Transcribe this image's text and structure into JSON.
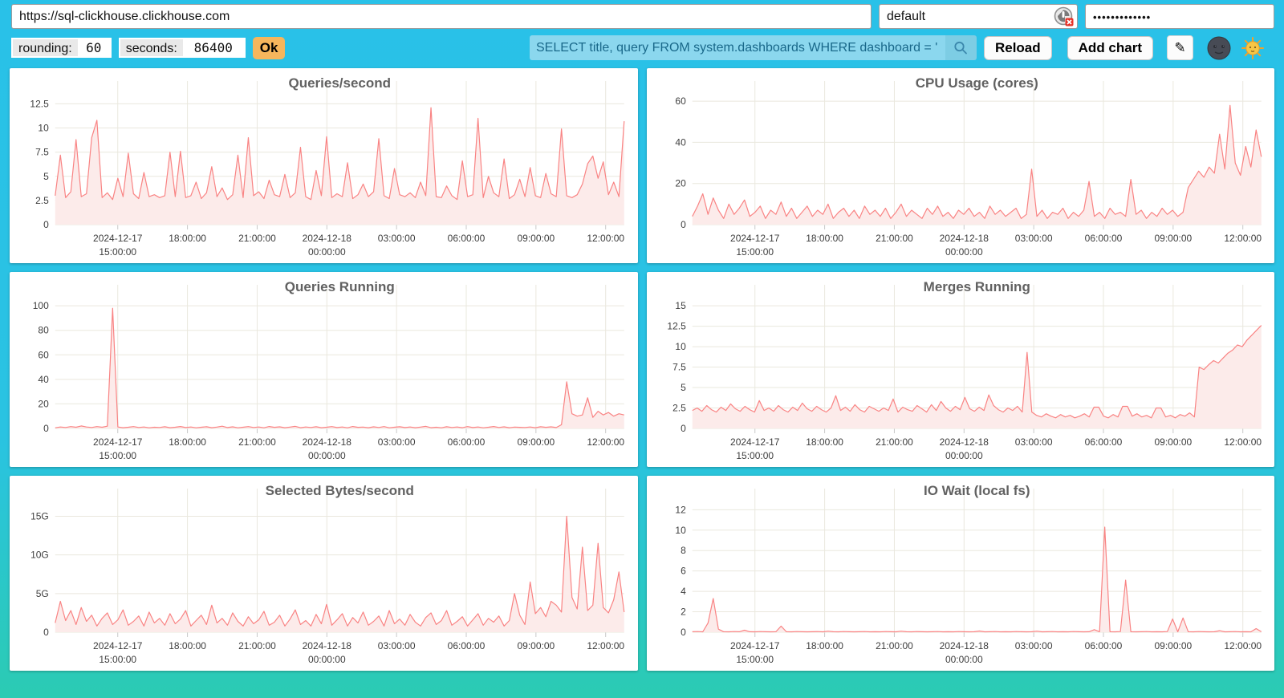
{
  "toolbar": {
    "url_value": "https://sql-clickhouse.clickhouse.com",
    "user_value": "default",
    "password_masked": "•••••••••••••",
    "rounding_label": "rounding:",
    "rounding_value": "60",
    "seconds_label": "seconds:",
    "seconds_value": "86400",
    "ok_label": "Ok",
    "query_value": "SELECT title, query FROM system.dashboards WHERE dashboard = '",
    "search_icon": "magnifier-icon",
    "reload_label": "Reload",
    "add_chart_label": "Add chart",
    "edit_icon": "pencil-icon",
    "theme_dark_icon": "new-moon-face-icon",
    "theme_light_icon": "sun-with-face-icon",
    "user_icon": "broken-image-icon"
  },
  "colors": {
    "background_top": "#29C1E8",
    "background_bottom": "#2BCBB3",
    "panel": "#FFFFFF",
    "grid": "#EAE8DE",
    "axis_stub": "#C9C9C9",
    "series_line": "#F98383",
    "series_fill": "#FCEBEA",
    "title_text": "#616161",
    "tick_text": "#3D3D3D",
    "ok_button": "#F6B65C",
    "query_bg": "#8BD7EE",
    "query_text": "#19688A"
  },
  "x_axis_shared": {
    "xticks": [
      0.11,
      0.2325,
      0.355,
      0.4775,
      0.6,
      0.7225,
      0.845,
      0.9675
    ],
    "xtick_labels": [
      [
        "2024-12-17",
        "15:00:00"
      ],
      [
        "18:00:00"
      ],
      [
        "21:00:00"
      ],
      [
        "2024-12-18",
        "00:00:00"
      ],
      [
        "03:00:00"
      ],
      [
        "06:00:00"
      ],
      [
        "09:00:00"
      ],
      [
        "12:00:00"
      ]
    ]
  },
  "chart_data": [
    {
      "type": "line",
      "title": "Queries/second",
      "xlabel": "",
      "ylabel": "",
      "ylim": [
        0,
        13.2
      ],
      "yticks": [
        0,
        2.5,
        5,
        7.5,
        10,
        12.5
      ],
      "ytick_labels": [
        "0",
        "2.5",
        "5",
        "7.5",
        "10",
        "12.5"
      ],
      "grid": true,
      "legend": "none",
      "xticks": [
        0.11,
        0.2325,
        0.355,
        0.4775,
        0.6,
        0.7225,
        0.845,
        0.9675
      ],
      "xtick_labels": [
        [
          "2024-12-17",
          "15:00:00"
        ],
        [
          "18:00:00"
        ],
        [
          "21:00:00"
        ],
        [
          "2024-12-18",
          "00:00:00"
        ],
        [
          "03:00:00"
        ],
        [
          "06:00:00"
        ],
        [
          "09:00:00"
        ],
        [
          "12:00:00"
        ]
      ],
      "values": [
        3.0,
        7.2,
        2.8,
        3.4,
        8.8,
        2.9,
        3.2,
        9.0,
        10.8,
        2.8,
        3.3,
        2.6,
        4.8,
        2.9,
        7.4,
        3.2,
        2.7,
        5.4,
        2.9,
        3.1,
        2.8,
        3.0,
        7.5,
        2.9,
        7.6,
        2.8,
        3.0,
        4.4,
        2.7,
        3.3,
        6.0,
        2.9,
        3.8,
        2.6,
        3.1,
        7.2,
        2.8,
        9.0,
        3.0,
        3.4,
        2.7,
        4.6,
        3.1,
        2.9,
        5.2,
        2.8,
        3.3,
        8.0,
        2.9,
        2.6,
        5.6,
        3.0,
        9.1,
        2.8,
        3.2,
        2.9,
        6.4,
        2.7,
        3.1,
        4.2,
        2.9,
        3.4,
        8.9,
        3.0,
        2.7,
        5.8,
        3.1,
        2.9,
        3.3,
        2.8,
        4.4,
        3.0,
        12.1,
        2.9,
        2.8,
        4.0,
        3.0,
        2.6,
        6.6,
        2.9,
        3.1,
        11.0,
        2.8,
        5.0,
        3.3,
        2.9,
        6.8,
        2.7,
        3.1,
        4.7,
        2.9,
        5.9,
        3.0,
        2.8,
        5.3,
        3.2,
        2.9,
        9.9,
        3.0,
        2.8,
        3.1,
        4.2,
        6.3,
        7.1,
        4.8,
        6.5,
        3.1,
        4.4,
        2.9,
        10.7
      ]
    },
    {
      "type": "line",
      "title": "CPU Usage (cores)",
      "xlabel": "",
      "ylabel": "",
      "ylim": [
        0,
        62
      ],
      "yticks": [
        0,
        20,
        40,
        60
      ],
      "ytick_labels": [
        "0",
        "20",
        "40",
        "60"
      ],
      "grid": true,
      "legend": "none",
      "xticks": [
        0.11,
        0.2325,
        0.355,
        0.4775,
        0.6,
        0.7225,
        0.845,
        0.9675
      ],
      "xtick_labels": [
        [
          "2024-12-17",
          "15:00:00"
        ],
        [
          "18:00:00"
        ],
        [
          "21:00:00"
        ],
        [
          "2024-12-18",
          "00:00:00"
        ],
        [
          "03:00:00"
        ],
        [
          "06:00:00"
        ],
        [
          "09:00:00"
        ],
        [
          "12:00:00"
        ]
      ],
      "values": [
        4,
        9,
        15,
        5,
        13,
        7,
        3,
        10,
        5,
        8,
        12,
        4,
        6,
        9,
        3,
        7,
        5,
        11,
        4,
        8,
        3,
        6,
        9,
        4,
        7,
        5,
        10,
        3,
        6,
        8,
        4,
        7,
        3,
        9,
        5,
        7,
        4,
        8,
        3,
        6,
        10,
        4,
        7,
        5,
        3,
        8,
        5,
        9,
        4,
        6,
        3,
        7,
        5,
        8,
        4,
        6,
        3,
        9,
        5,
        7,
        4,
        6,
        8,
        3,
        5,
        27,
        4,
        7,
        3,
        6,
        5,
        8,
        3,
        6,
        4,
        7,
        21,
        4,
        6,
        3,
        8,
        5,
        6,
        4,
        22,
        5,
        7,
        3,
        6,
        4,
        8,
        5,
        7,
        4,
        6,
        18,
        22,
        26,
        23,
        28,
        25,
        44,
        27,
        58,
        30,
        24,
        38,
        28,
        46,
        33
      ]
    },
    {
      "type": "line",
      "title": "Queries Running",
      "xlabel": "",
      "ylabel": "",
      "ylim": [
        0,
        104
      ],
      "yticks": [
        0,
        20,
        40,
        60,
        80,
        100
      ],
      "ytick_labels": [
        "0",
        "20",
        "40",
        "60",
        "80",
        "100"
      ],
      "grid": true,
      "legend": "none",
      "xticks": [
        0.11,
        0.2325,
        0.355,
        0.4775,
        0.6,
        0.7225,
        0.845,
        0.9675
      ],
      "xtick_labels": [
        [
          "2024-12-17",
          "15:00:00"
        ],
        [
          "18:00:00"
        ],
        [
          "21:00:00"
        ],
        [
          "2024-12-18",
          "00:00:00"
        ],
        [
          "03:00:00"
        ],
        [
          "06:00:00"
        ],
        [
          "09:00:00"
        ],
        [
          "12:00:00"
        ]
      ],
      "values": [
        0.5,
        1.2,
        0.8,
        1.5,
        1.0,
        2.0,
        1.2,
        0.8,
        1.5,
        1.0,
        1.8,
        98,
        1.2,
        0.6,
        1.0,
        1.5,
        0.8,
        1.2,
        0.5,
        1.0,
        0.8,
        1.4,
        0.6,
        1.0,
        1.6,
        0.7,
        1.2,
        0.5,
        1.0,
        1.4,
        0.6,
        1.1,
        1.8,
        0.7,
        1.3,
        0.5,
        1.0,
        1.5,
        0.8,
        1.2,
        0.5,
        1.6,
        0.9,
        1.3,
        0.6,
        1.1,
        1.7,
        0.6,
        1.2,
        0.8,
        1.4,
        0.6,
        1.0,
        1.5,
        0.7,
        1.2,
        0.5,
        1.6,
        0.9,
        1.1,
        0.6,
        1.3,
        0.8,
        1.5,
        0.5,
        1.0,
        1.4,
        0.7,
        1.2,
        0.6,
        1.1,
        1.7,
        0.6,
        1.0,
        0.5,
        1.4,
        0.8,
        1.2,
        0.6,
        1.5,
        0.7,
        1.2,
        0.5,
        1.0,
        1.6,
        0.8,
        1.3,
        0.6,
        1.1,
        0.9,
        0.8,
        1.2,
        0.6,
        1.4,
        0.9,
        1.3,
        0.7,
        3.0,
        38,
        12,
        10,
        11,
        25,
        9,
        14,
        11,
        13,
        10,
        12,
        11
      ]
    },
    {
      "type": "line",
      "title": "Merges Running",
      "xlabel": "",
      "ylabel": "",
      "ylim": [
        0,
        15.6
      ],
      "yticks": [
        0,
        2.5,
        5,
        7.5,
        10,
        12.5,
        15
      ],
      "ytick_labels": [
        "0",
        "2.5",
        "5",
        "7.5",
        "10",
        "12.5",
        "15"
      ],
      "grid": true,
      "legend": "none",
      "xticks": [
        0.11,
        0.2325,
        0.355,
        0.4775,
        0.6,
        0.7225,
        0.845,
        0.9675
      ],
      "xtick_labels": [
        [
          "2024-12-17",
          "15:00:00"
        ],
        [
          "18:00:00"
        ],
        [
          "21:00:00"
        ],
        [
          "2024-12-18",
          "00:00:00"
        ],
        [
          "03:00:00"
        ],
        [
          "06:00:00"
        ],
        [
          "09:00:00"
        ],
        [
          "12:00:00"
        ]
      ],
      "values": [
        2.2,
        2.5,
        2.1,
        2.8,
        2.3,
        2.0,
        2.6,
        2.2,
        3.0,
        2.4,
        2.1,
        2.7,
        2.3,
        2.0,
        3.4,
        2.2,
        2.5,
        2.1,
        2.8,
        2.3,
        2.0,
        2.6,
        2.2,
        3.1,
        2.4,
        2.1,
        2.7,
        2.3,
        2.0,
        2.5,
        4.0,
        2.2,
        2.6,
        2.1,
        2.9,
        2.3,
        2.0,
        2.7,
        2.4,
        2.1,
        2.5,
        2.2,
        3.6,
        2.0,
        2.6,
        2.3,
        2.1,
        2.8,
        2.4,
        2.0,
        2.9,
        2.2,
        3.3,
        2.5,
        2.1,
        2.7,
        2.3,
        3.8,
        2.4,
        2.1,
        2.6,
        2.2,
        4.1,
        2.8,
        2.3,
        2.0,
        2.5,
        2.2,
        2.7,
        2.0,
        9.3,
        2.0,
        1.6,
        1.4,
        1.8,
        1.5,
        1.3,
        1.7,
        1.4,
        1.6,
        1.3,
        1.5,
        1.8,
        1.4,
        2.6,
        2.6,
        1.5,
        1.3,
        1.7,
        1.4,
        2.7,
        2.7,
        1.5,
        1.8,
        1.4,
        1.6,
        1.3,
        2.5,
        2.5,
        1.4,
        1.6,
        1.3,
        1.7,
        1.5,
        1.9,
        1.4,
        7.5,
        7.2,
        7.8,
        8.3,
        8.0,
        8.6,
        9.2,
        9.6,
        10.2,
        10.0,
        10.8,
        11.4,
        12.0,
        12.6
      ]
    },
    {
      "type": "line",
      "title": "Selected Bytes/second",
      "xlabel": "",
      "ylabel": "",
      "ylim": [
        0,
        16.5
      ],
      "yticks": [
        0,
        5,
        10,
        15
      ],
      "ytick_labels": [
        "0",
        "5G",
        "10G",
        "15G"
      ],
      "grid": true,
      "legend": "none",
      "xticks": [
        0.11,
        0.2325,
        0.355,
        0.4775,
        0.6,
        0.7225,
        0.845,
        0.9675
      ],
      "xtick_labels": [
        [
          "2024-12-17",
          "15:00:00"
        ],
        [
          "18:00:00"
        ],
        [
          "21:00:00"
        ],
        [
          "2024-12-18",
          "00:00:00"
        ],
        [
          "03:00:00"
        ],
        [
          "06:00:00"
        ],
        [
          "09:00:00"
        ],
        [
          "12:00:00"
        ]
      ],
      "values": [
        1.2,
        4.0,
        1.5,
        2.8,
        1.0,
        3.2,
        1.4,
        2.2,
        0.8,
        1.8,
        2.5,
        1.0,
        1.6,
        2.9,
        0.9,
        1.4,
        2.1,
        0.8,
        2.6,
        1.2,
        1.8,
        0.9,
        2.4,
        1.1,
        1.7,
        2.8,
        0.8,
        1.5,
        2.2,
        1.0,
        3.5,
        1.2,
        1.8,
        0.9,
        2.5,
        1.4,
        0.8,
        2.0,
        1.1,
        1.6,
        2.7,
        0.9,
        1.3,
        2.2,
        0.8,
        1.7,
        2.9,
        1.0,
        1.5,
        0.8,
        2.3,
        1.1,
        3.6,
        0.9,
        1.6,
        2.4,
        0.8,
        1.9,
        1.2,
        2.6,
        0.9,
        1.4,
        2.1,
        0.8,
        2.8,
        1.1,
        1.7,
        0.9,
        2.3,
        1.3,
        0.8,
        1.9,
        2.5,
        1.0,
        1.5,
        2.8,
        0.9,
        1.4,
        2.0,
        0.8,
        1.6,
        2.4,
        0.9,
        1.8,
        1.3,
        2.1,
        0.8,
        1.5,
        5.0,
        2.2,
        1.0,
        6.5,
        2.4,
        3.2,
        2.0,
        4.0,
        3.5,
        2.6,
        15.0,
        4.5,
        3.0,
        11.0,
        2.8,
        3.5,
        11.5,
        3.2,
        2.5,
        4.2,
        7.8,
        2.6
      ]
    },
    {
      "type": "line",
      "title": "IO Wait (local fs)",
      "xlabel": "",
      "ylabel": "",
      "ylim": [
        0,
        12.5
      ],
      "yticks": [
        0,
        2,
        4,
        6,
        8,
        10,
        12
      ],
      "ytick_labels": [
        "0",
        "2",
        "4",
        "6",
        "8",
        "10",
        "12"
      ],
      "grid": true,
      "legend": "none",
      "xticks": [
        0.11,
        0.2325,
        0.355,
        0.4775,
        0.6,
        0.7225,
        0.845,
        0.9675
      ],
      "xtick_labels": [
        [
          "2024-12-17",
          "15:00:00"
        ],
        [
          "18:00:00"
        ],
        [
          "21:00:00"
        ],
        [
          "2024-12-18",
          "00:00:00"
        ],
        [
          "03:00:00"
        ],
        [
          "06:00:00"
        ],
        [
          "09:00:00"
        ],
        [
          "12:00:00"
        ]
      ],
      "values": [
        0.05,
        0.06,
        0.04,
        0.9,
        3.3,
        0.3,
        0.05,
        0.04,
        0.06,
        0.05,
        0.2,
        0.05,
        0.04,
        0.06,
        0.05,
        0.04,
        0.05,
        0.6,
        0.05,
        0.04,
        0.06,
        0.05,
        0.04,
        0.05,
        0.06,
        0.04,
        0.1,
        0.05,
        0.04,
        0.06,
        0.05,
        0.04,
        0.05,
        0.06,
        0.04,
        0.05,
        0.04,
        0.06,
        0.05,
        0.04,
        0.1,
        0.05,
        0.04,
        0.06,
        0.05,
        0.04,
        0.05,
        0.06,
        0.04,
        0.05,
        0.04,
        0.06,
        0.05,
        0.04,
        0.05,
        0.12,
        0.04,
        0.05,
        0.06,
        0.04,
        0.05,
        0.04,
        0.06,
        0.05,
        0.04,
        0.05,
        0.1,
        0.04,
        0.05,
        0.06,
        0.04,
        0.05,
        0.04,
        0.06,
        0.05,
        0.04,
        0.05,
        0.25,
        0.05,
        10.3,
        0.05,
        0.04,
        0.06,
        5.1,
        0.05,
        0.04,
        0.05,
        0.06,
        0.04,
        0.05,
        0.04,
        0.06,
        1.3,
        0.04,
        1.4,
        0.05,
        0.04,
        0.06,
        0.05,
        0.04,
        0.05,
        0.15,
        0.04,
        0.05,
        0.06,
        0.04,
        0.05,
        0.04,
        0.35,
        0.05
      ]
    }
  ]
}
